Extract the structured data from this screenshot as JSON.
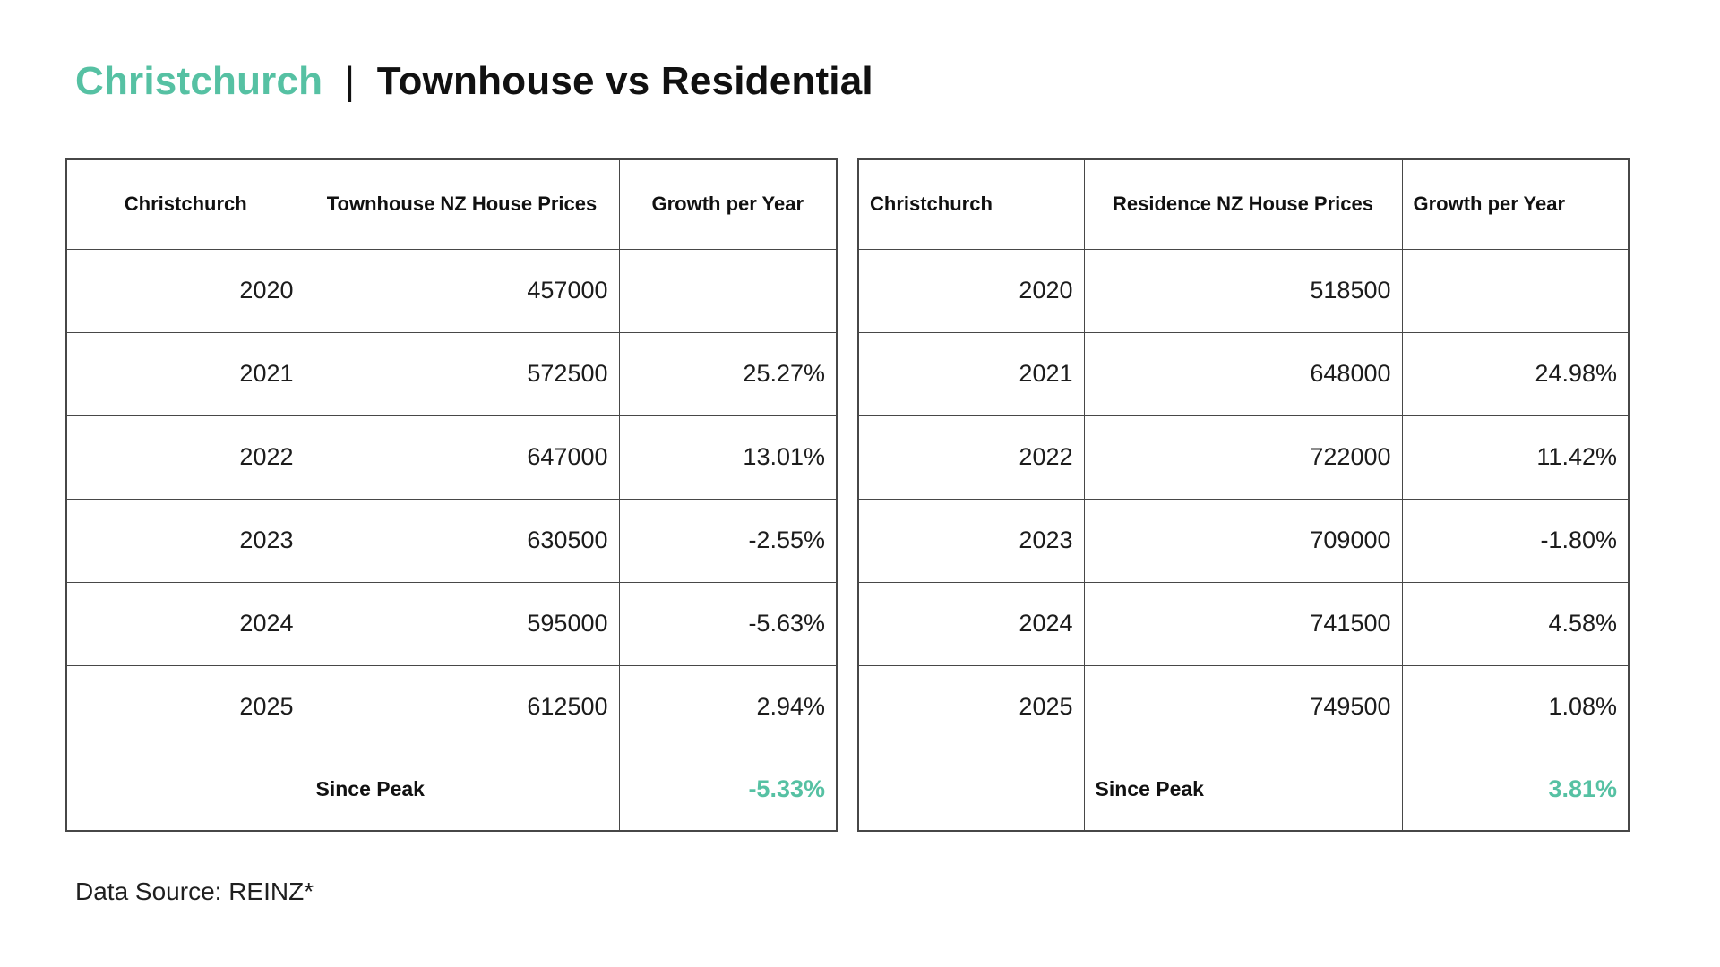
{
  "page": {
    "title": {
      "highlight": "Christchurch",
      "separator": "|",
      "rest": "Townhouse vs Residential"
    },
    "footer": "Data Source: REINZ*",
    "colors": {
      "accent": "#56c1a3",
      "text": "#1b1b1b",
      "border": "#474747",
      "background": "#ffffff"
    }
  },
  "tables": [
    {
      "id": "townhouse",
      "headers": [
        "Christchurch",
        "Townhouse NZ House Prices",
        "Growth per Year"
      ],
      "rows": [
        {
          "year": "2020",
          "price": "457000",
          "growth": ""
        },
        {
          "year": "2021",
          "price": "572500",
          "growth": "25.27%"
        },
        {
          "year": "2022",
          "price": "647000",
          "growth": "13.01%"
        },
        {
          "year": "2023",
          "price": "630500",
          "growth": "-2.55%"
        },
        {
          "year": "2024",
          "price": "595000",
          "growth": "-5.63%"
        },
        {
          "year": "2025",
          "price": "612500",
          "growth": "2.94%"
        }
      ],
      "summary": {
        "label": "Since Peak",
        "value": "-5.33%"
      }
    },
    {
      "id": "residence",
      "headers": [
        "Christchurch",
        "Residence NZ House Prices",
        "Growth per Year"
      ],
      "rows": [
        {
          "year": "2020",
          "price": "518500",
          "growth": ""
        },
        {
          "year": "2021",
          "price": "648000",
          "growth": "24.98%"
        },
        {
          "year": "2022",
          "price": "722000",
          "growth": "11.42%"
        },
        {
          "year": "2023",
          "price": "709000",
          "growth": "-1.80%"
        },
        {
          "year": "2024",
          "price": "741500",
          "growth": "4.58%"
        },
        {
          "year": "2025",
          "price": "749500",
          "growth": "1.08%"
        }
      ],
      "summary": {
        "label": "Since Peak",
        "value": "3.81%"
      }
    }
  ],
  "chart_data": [
    {
      "type": "table",
      "title": "Christchurch Townhouse NZ House Prices",
      "columns": [
        "Christchurch",
        "Townhouse NZ House Prices",
        "Growth per Year"
      ],
      "years": [
        2020,
        2021,
        2022,
        2023,
        2024,
        2025
      ],
      "prices": [
        457000,
        572500,
        647000,
        630500,
        595000,
        612500
      ],
      "growth_per_year_pct": [
        null,
        25.27,
        13.01,
        -2.55,
        -5.63,
        2.94
      ],
      "since_peak_pct": -5.33
    },
    {
      "type": "table",
      "title": "Christchurch Residence NZ House Prices",
      "columns": [
        "Christchurch",
        "Residence NZ House Prices",
        "Growth per Year"
      ],
      "years": [
        2020,
        2021,
        2022,
        2023,
        2024,
        2025
      ],
      "prices": [
        518500,
        648000,
        722000,
        709000,
        741500,
        749500
      ],
      "growth_per_year_pct": [
        null,
        24.98,
        11.42,
        -1.8,
        4.58,
        1.08
      ],
      "since_peak_pct": 3.81
    }
  ]
}
